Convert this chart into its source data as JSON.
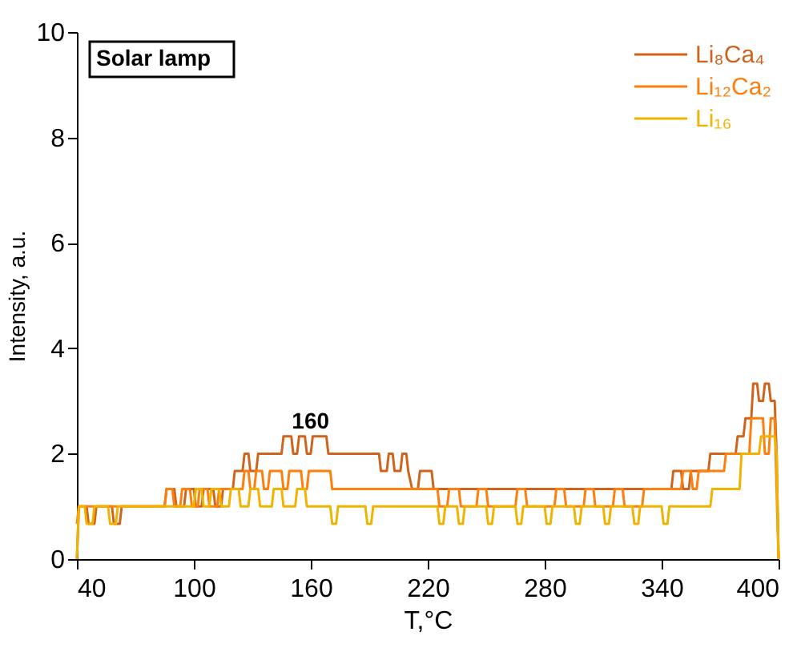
{
  "chart_data": {
    "type": "line",
    "xlabel": "T,°C",
    "ylabel": "Intensity, a.u.",
    "xlim": [
      40,
      400
    ],
    "ylim": [
      0,
      10
    ],
    "xticks": [
      40,
      100,
      160,
      220,
      280,
      340,
      400
    ],
    "yticks": [
      0,
      2,
      4,
      6,
      8,
      10
    ],
    "line_style": "solid",
    "grid": false,
    "legend": "top right",
    "annotations": [
      "Solar lamp",
      "160"
    ],
    "series": [
      {
        "name": "Li₈Ca₄",
        "color": "#d0641c",
        "x": [
          40,
          41,
          45,
          46,
          49,
          50,
          58,
          59,
          62,
          63,
          85,
          86,
          90,
          91,
          95,
          96,
          100,
          101,
          104,
          105,
          110,
          111,
          114,
          115,
          120,
          121,
          125,
          126,
          128,
          129,
          132,
          133,
          145,
          146,
          150,
          151,
          153,
          154,
          157,
          158,
          160,
          161,
          168,
          169,
          195,
          196,
          199,
          200,
          202,
          203,
          206,
          207,
          209,
          210,
          212,
          215,
          216,
          222,
          223,
          345,
          346,
          350,
          351,
          354,
          355,
          364,
          365,
          378,
          379,
          382,
          383,
          386,
          387,
          389,
          390,
          392,
          393,
          395,
          396,
          398,
          399,
          400
        ],
        "values": [
          0,
          1,
          1,
          0.67,
          0.67,
          1,
          1,
          0.67,
          0.67,
          1,
          1,
          1.33,
          1.33,
          1,
          1,
          1.33,
          1.33,
          1,
          1,
          1.33,
          1.33,
          1,
          1,
          1.33,
          1.33,
          1.67,
          1.67,
          2,
          2,
          1.67,
          1.67,
          2,
          2,
          2.33,
          2.33,
          2,
          2,
          2.33,
          2.33,
          2,
          2,
          2.33,
          2.33,
          2,
          2,
          1.67,
          1.67,
          2,
          2,
          1.67,
          1.67,
          2,
          2,
          1.67,
          1.33,
          1.33,
          1.67,
          1.67,
          1.33,
          1.33,
          1.67,
          1.67,
          1.33,
          1.33,
          1.67,
          1.67,
          2,
          2,
          2.33,
          2.33,
          2.67,
          2.67,
          3.33,
          3.33,
          3,
          3,
          3.33,
          3.33,
          3,
          3,
          2,
          0
        ]
      },
      {
        "name": "Li₁₂Ca₂",
        "color": "#ff7f0e",
        "x": [
          40,
          41,
          85,
          86,
          89,
          90,
          93,
          94,
          98,
          99,
          102,
          103,
          107,
          108,
          112,
          113,
          125,
          126,
          128,
          129,
          131,
          132,
          135,
          136,
          138,
          139,
          145,
          146,
          148,
          149,
          155,
          156,
          158,
          159,
          170,
          171,
          225,
          226,
          230,
          231,
          236,
          237,
          245,
          246,
          250,
          251,
          265,
          266,
          270,
          271,
          285,
          286,
          290,
          291,
          300,
          301,
          305,
          306,
          315,
          316,
          320,
          321,
          330,
          331,
          350,
          351,
          355,
          356,
          358,
          359,
          372,
          373,
          385,
          386,
          392,
          393,
          395,
          396,
          398,
          400
        ],
        "values": [
          0.67,
          1,
          1,
          1.33,
          1.33,
          1,
          1,
          1.33,
          1.33,
          1,
          1,
          1.33,
          1.33,
          1,
          1,
          1.33,
          1.33,
          1.67,
          1.67,
          1.33,
          1.33,
          1.67,
          1.67,
          1.33,
          1.33,
          1.67,
          1.67,
          1.33,
          1.33,
          1.67,
          1.67,
          1.33,
          1.33,
          1.67,
          1.67,
          1.33,
          1.33,
          1,
          1,
          1.33,
          1.33,
          1,
          1,
          1.33,
          1.33,
          1,
          1,
          1.33,
          1.33,
          1,
          1,
          1.33,
          1.33,
          1,
          1,
          1.33,
          1.33,
          1,
          1,
          1.33,
          1.33,
          1,
          1,
          1.33,
          1.33,
          1.67,
          1.67,
          1.33,
          1.33,
          1.67,
          1.67,
          2,
          2,
          2.67,
          2.67,
          2,
          2,
          2.67,
          2.67,
          0
        ]
      },
      {
        "name": "Li₁₆",
        "color": "#f0b400",
        "x": [
          40,
          41,
          44,
          45,
          48,
          49,
          56,
          57,
          60,
          61,
          100,
          101,
          104,
          105,
          108,
          109,
          113,
          114,
          118,
          119,
          123,
          124,
          128,
          129,
          133,
          134,
          140,
          141,
          145,
          146,
          152,
          153,
          157,
          158,
          170,
          171,
          173,
          174,
          188,
          189,
          191,
          192,
          225,
          226,
          228,
          229,
          235,
          236,
          238,
          239,
          250,
          251,
          253,
          254,
          265,
          266,
          268,
          269,
          280,
          281,
          283,
          284,
          295,
          296,
          298,
          299,
          310,
          311,
          313,
          314,
          325,
          326,
          328,
          329,
          340,
          341,
          343,
          344,
          365,
          366,
          380,
          381,
          390,
          391,
          398,
          399,
          400
        ],
        "values": [
          0,
          1,
          1,
          0.67,
          0.67,
          1,
          1,
          0.67,
          0.67,
          1,
          1,
          1.33,
          1.33,
          1,
          1,
          1.33,
          1.33,
          1,
          1,
          1.33,
          1.33,
          1,
          1,
          1.33,
          1.33,
          1,
          1,
          1.33,
          1.33,
          1,
          1,
          1.33,
          1.33,
          1,
          1,
          0.67,
          0.67,
          1,
          1,
          0.67,
          0.67,
          1,
          1,
          0.67,
          0.67,
          1,
          1,
          0.67,
          0.67,
          1,
          1,
          0.67,
          0.67,
          1,
          1,
          0.67,
          0.67,
          1,
          1,
          0.67,
          0.67,
          1,
          1,
          0.67,
          0.67,
          1,
          1,
          0.67,
          0.67,
          1,
          1,
          0.67,
          0.67,
          1,
          1,
          0.67,
          0.67,
          1,
          1,
          1.33,
          1.33,
          2,
          2,
          2.33,
          2.33,
          2,
          0
        ]
      }
    ]
  }
}
